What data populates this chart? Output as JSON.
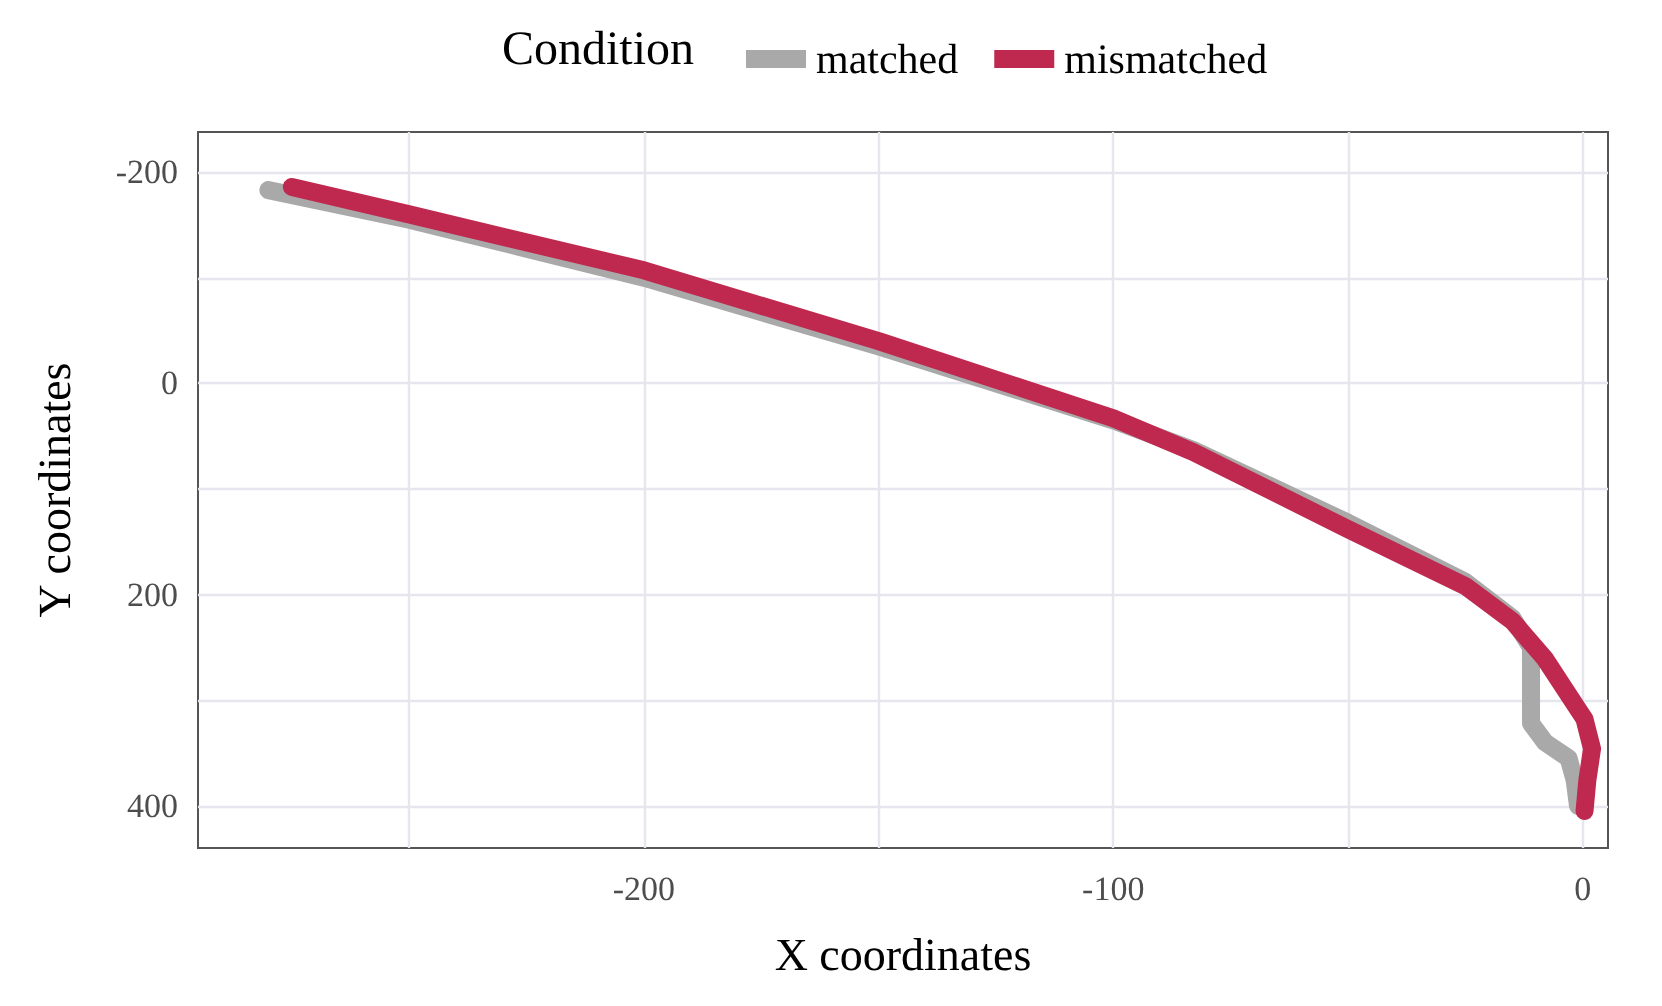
{
  "chart_data": {
    "type": "line",
    "xlabel": "X coordinates",
    "ylabel": "Y coordinates",
    "legend_title": "Condition",
    "legend": "top",
    "grid": true,
    "line_style": "solid",
    "marker": "none",
    "xlim": [
      -295,
      5.4
    ],
    "ylim": [
      440,
      -238
    ],
    "xticks": [
      -200,
      -100,
      0
    ],
    "yticks": [
      -200,
      0,
      200,
      400
    ],
    "series": [
      {
        "name": "matched",
        "color": "#a9a9a9",
        "x": [
          -280,
          -250,
          -200,
          -150,
          -100,
          -83,
          -50,
          -25,
          -15,
          -11,
          -11,
          -11,
          -8,
          -3,
          -1.7,
          -1
        ],
        "values": [
          -183,
          -155,
          -100,
          -35,
          35,
          63,
          132,
          188,
          222,
          250,
          273,
          322,
          340,
          355,
          376,
          400
        ]
      },
      {
        "name": "mismatched",
        "color": "#c0294f",
        "x": [
          -275,
          -250,
          -200,
          -150,
          -100,
          -83,
          -50,
          -25,
          -15,
          -8,
          -3,
          0.4,
          2,
          1,
          0.4
        ],
        "values": [
          -186,
          -160,
          -107,
          -40,
          33,
          65,
          138,
          192,
          225,
          261,
          295,
          318,
          346,
          376,
          405
        ]
      }
    ]
  }
}
